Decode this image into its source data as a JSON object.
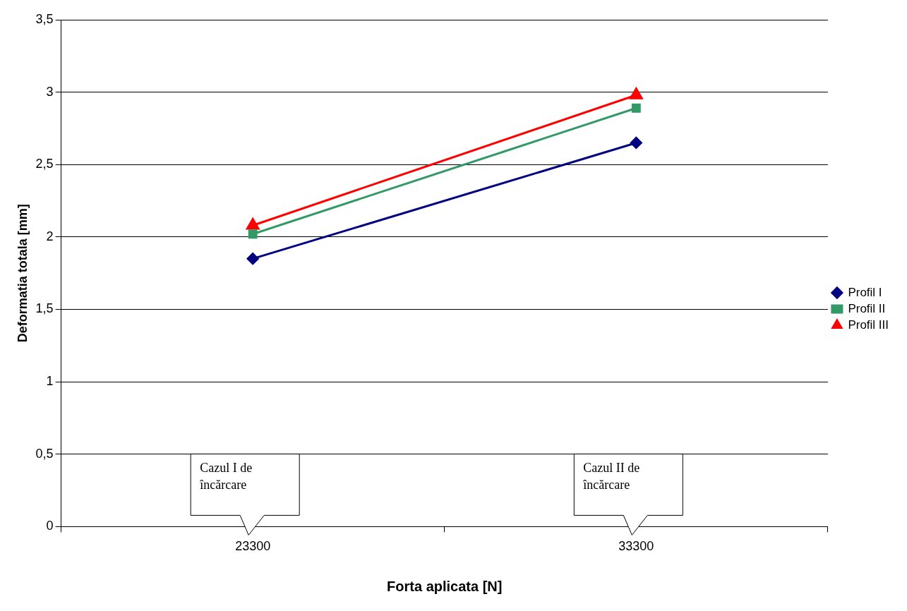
{
  "chart_data": {
    "type": "line",
    "xlabel": "Forta aplicata [N]",
    "ylabel": "Deformatia totala [mm]",
    "categories": [
      "23300",
      "33300"
    ],
    "series": [
      {
        "name": "Profil I",
        "color": "#000080",
        "values": [
          1.85,
          2.65
        ],
        "marker": "diamond"
      },
      {
        "name": "Profil II",
        "color": "#339966",
        "values": [
          2.02,
          2.89
        ],
        "marker": "square"
      },
      {
        "name": "Profil III",
        "color": "#ff0000",
        "values": [
          2.08,
          2.98
        ],
        "marker": "triangle"
      }
    ],
    "ylim": [
      0,
      3.5
    ],
    "yticks": [
      {
        "value": 0,
        "label": "0"
      },
      {
        "value": 0.5,
        "label": "0,5"
      },
      {
        "value": 1,
        "label": "1"
      },
      {
        "value": 1.5,
        "label": "1,5"
      },
      {
        "value": 2,
        "label": "2"
      },
      {
        "value": 2.5,
        "label": "2,5"
      },
      {
        "value": 3,
        "label": "3"
      },
      {
        "value": 3.5,
        "label": "3,5"
      }
    ],
    "grid": "y",
    "legend": "right",
    "annotations": [
      "Cazul I de încărcare",
      "Cazul II de încărcare"
    ]
  }
}
